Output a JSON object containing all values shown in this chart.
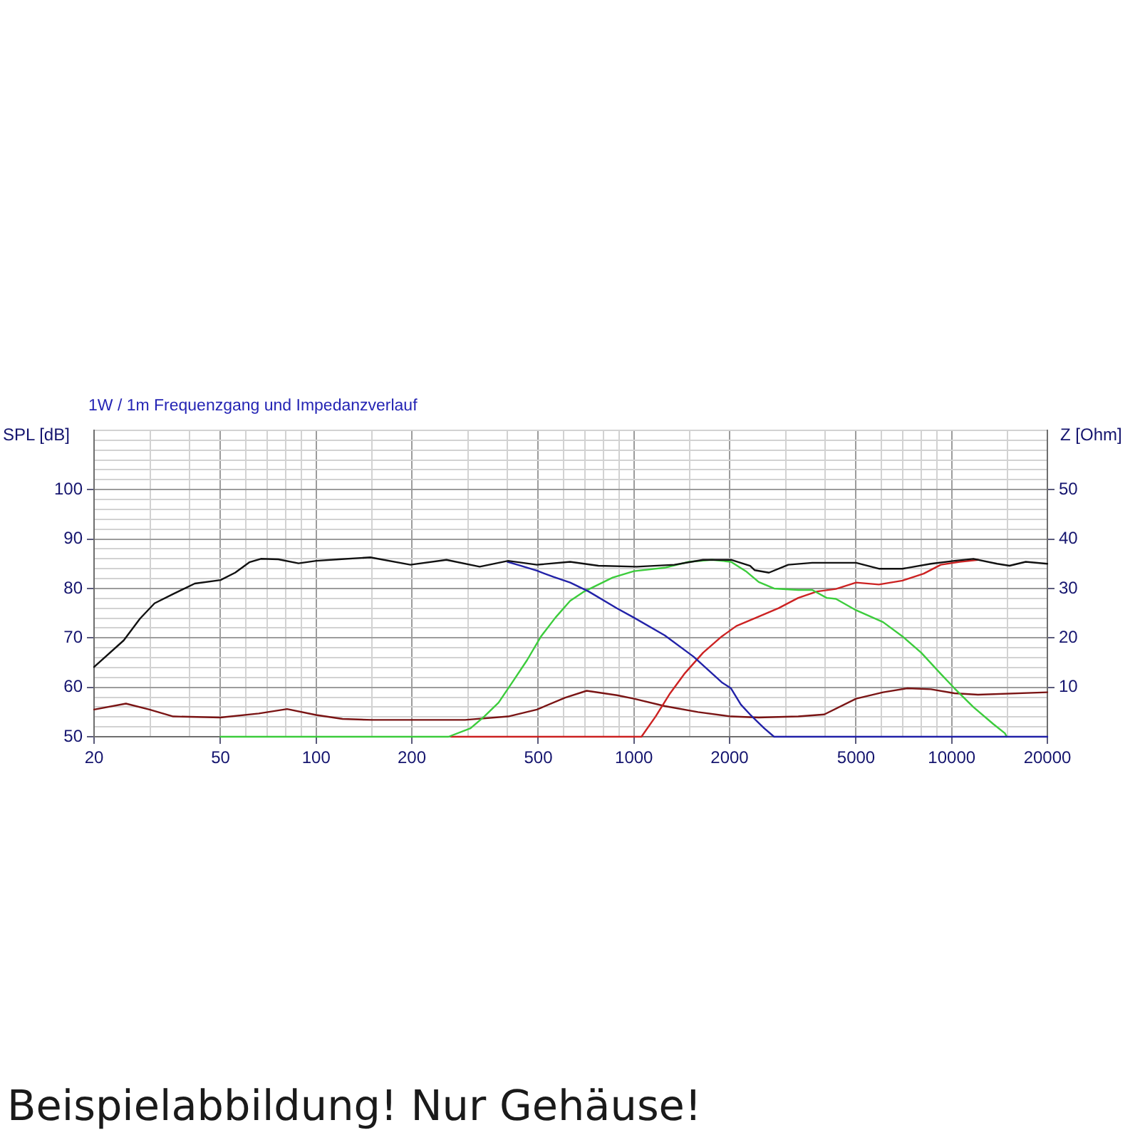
{
  "chart_data": {
    "type": "line",
    "subtitle": "1W / 1m Frequenzgang und Impedanzverlauf",
    "ylabel": "SPL [dB]",
    "y2label": "Z [Ohm]",
    "annotations": [
      "Beispielabbildung! Nur Gehäuse!"
    ],
    "log": "x",
    "grid": true,
    "xlim": [
      20,
      20000
    ],
    "xticks": [
      20,
      {
        "value": 30,
        "label": null
      },
      {
        "value": 40,
        "label": null
      },
      50,
      {
        "value": 60,
        "label": null
      },
      {
        "value": 70,
        "label": null
      },
      {
        "value": 80,
        "label": null
      },
      {
        "value": 90,
        "label": null
      },
      100,
      {
        "value": 150,
        "label": null
      },
      200,
      {
        "value": 300,
        "label": null
      },
      {
        "value": 400,
        "label": null
      },
      500,
      {
        "value": 600,
        "label": null
      },
      {
        "value": 700,
        "label": null
      },
      {
        "value": 800,
        "label": null
      },
      {
        "value": 900,
        "label": null
      },
      1000,
      {
        "value": 1500,
        "label": null
      },
      2000,
      {
        "value": 3000,
        "label": null
      },
      {
        "value": 4000,
        "label": null
      },
      5000,
      {
        "value": 6000,
        "label": null
      },
      {
        "value": 7000,
        "label": null
      },
      {
        "value": 8000,
        "label": null
      },
      {
        "value": 9000,
        "label": null
      },
      10000,
      {
        "value": 15000,
        "label": null
      },
      20000
    ],
    "ylim": [
      50,
      112
    ],
    "yticks": [
      50,
      {
        "value": 52,
        "label": null
      },
      {
        "value": 54,
        "label": null
      },
      {
        "value": 56,
        "label": null
      },
      {
        "value": 58,
        "label": null
      },
      60,
      {
        "value": 62,
        "label": null
      },
      {
        "value": 64,
        "label": null
      },
      {
        "value": 66,
        "label": null
      },
      {
        "value": 68,
        "label": null
      },
      70,
      {
        "value": 72,
        "label": null
      },
      {
        "value": 74,
        "label": null
      },
      {
        "value": 76,
        "label": null
      },
      {
        "value": 78,
        "label": null
      },
      80,
      {
        "value": 82,
        "label": null
      },
      {
        "value": 84,
        "label": null
      },
      {
        "value": 86,
        "label": null
      },
      {
        "value": 88,
        "label": null
      },
      90,
      {
        "value": 92,
        "label": null
      },
      {
        "value": 94,
        "label": null
      },
      {
        "value": 96,
        "label": null
      },
      {
        "value": 98,
        "label": null
      },
      100,
      {
        "value": 102,
        "label": null
      },
      {
        "value": 104,
        "label": null
      },
      {
        "value": 106,
        "label": null
      },
      {
        "value": 108,
        "label": null
      },
      {
        "value": 110,
        "label": null
      },
      {
        "value": 112,
        "label": null
      }
    ],
    "y2lim": [
      0,
      62
    ],
    "y2ticks": [
      10,
      20,
      30,
      40,
      50
    ],
    "series": [
      {
        "color": "#111111",
        "x": [
          20,
          24.8,
          27.9,
          31,
          35.5,
          41.5,
          50,
          55.6,
          61.6,
          67,
          76,
          88,
          100,
          118,
          148,
          198,
          257,
          327,
          402,
          495,
          630,
          773,
          1020,
          1340,
          1650,
          2020,
          2320,
          2400,
          2660,
          3060,
          3640,
          5000,
          5900,
          7000,
          8600,
          10200,
          11700,
          13900,
          15200,
          17100,
          20000
        ],
        "values": [
          64.1,
          69.5,
          73.9,
          77,
          78.9,
          81,
          81.7,
          83.2,
          85.3,
          86,
          85.9,
          85.1,
          85.6,
          85.9,
          86.3,
          84.8,
          85.8,
          84.4,
          85.6,
          84.8,
          85.4,
          84.6,
          84.4,
          84.8,
          85.8,
          85.8,
          84.6,
          83.7,
          83.2,
          84.8,
          85.2,
          85.2,
          84,
          84,
          85,
          85.6,
          86,
          85,
          84.6,
          85.4,
          85
        ]
      },
      {
        "color": "#2222a8",
        "x": [
          400,
          430,
          495,
          560,
          630,
          720,
          884,
          1000,
          1250,
          1540,
          1890,
          2020,
          2170,
          2320,
          2570,
          2760,
          20000
        ],
        "values": [
          85.4,
          84.8,
          83.6,
          82.3,
          81.2,
          79.4,
          76,
          74.1,
          70.5,
          66.2,
          61,
          59.8,
          56.5,
          54.5,
          51.7,
          50,
          50
        ]
      },
      {
        "color": "#3ccc3c",
        "x": [
          50,
          261,
          306,
          338,
          375,
          416,
          461,
          510,
          566,
          630,
          698,
          857,
          1000,
          1250,
          1490,
          1760,
          2020,
          2250,
          2470,
          2760,
          3290,
          3640,
          4040,
          4320,
          5000,
          6080,
          7000,
          8020,
          9240,
          10200,
          11700,
          13500,
          14700,
          14900
        ],
        "values": [
          50,
          50,
          51.7,
          54.1,
          56.9,
          61.2,
          65.5,
          70.3,
          74.1,
          77.5,
          79.4,
          82.2,
          83.5,
          84.2,
          85.4,
          85.8,
          85.4,
          83.5,
          81.3,
          80,
          79.7,
          79.7,
          78.1,
          77.9,
          75.6,
          73.2,
          70.3,
          67,
          62.7,
          59.8,
          56,
          52.6,
          50.7,
          50
        ]
      },
      {
        "color": "#cc2222",
        "x": [
          266,
          1056,
          1170,
          1300,
          1440,
          1650,
          1890,
          2100,
          2470,
          2850,
          3290,
          3770,
          4320,
          5000,
          5900,
          7000,
          8160,
          9240,
          10600,
          12100
        ],
        "values": [
          50,
          50,
          54.1,
          58.8,
          62.7,
          67,
          70.3,
          72.4,
          74.3,
          76,
          78.1,
          79.4,
          79.9,
          81.2,
          80.8,
          81.6,
          83,
          84.8,
          85.4,
          85.8
        ]
      },
      {
        "color": "#7a1414",
        "axis": "y2",
        "x": [
          20,
          25.2,
          29.9,
          35.5,
          50,
          66,
          81,
          100,
          121,
          150,
          294,
          402,
          495,
          608,
          710,
          884,
          1000,
          1250,
          1590,
          2020,
          2470,
          3290,
          3970,
          5000,
          6080,
          7250,
          8600,
          10200,
          12100,
          20000
        ],
        "values": [
          5.5,
          6.7,
          5.5,
          4.1,
          3.9,
          4.7,
          5.6,
          4.4,
          3.6,
          3.4,
          3.4,
          4.1,
          5.5,
          7.9,
          9.3,
          8.4,
          7.7,
          6.2,
          5,
          4.1,
          3.9,
          4.1,
          4.5,
          7.7,
          9,
          9.8,
          9.6,
          8.8,
          8.5,
          9
        ]
      }
    ]
  }
}
